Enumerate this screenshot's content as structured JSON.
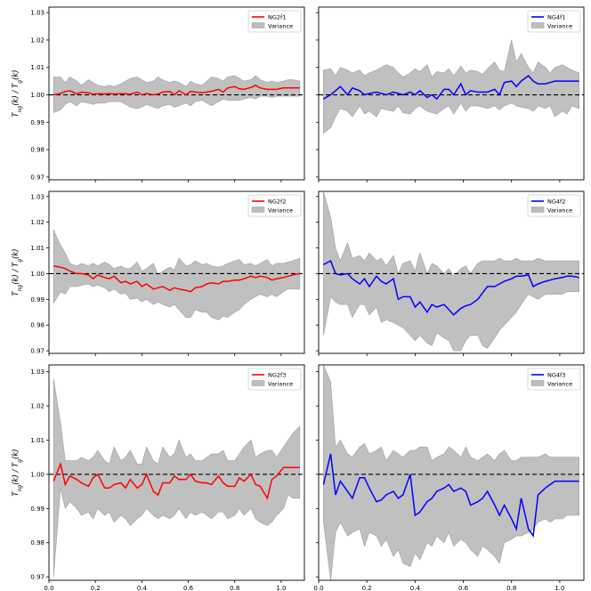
{
  "chart_data": {
    "type": "line",
    "layout": "3x2 grid of panels, shared axes",
    "ylabel": "T_ng(k) / T_g(k)",
    "ylabel_parts": {
      "T1": "T",
      "s1": "ng",
      "m": "(k) / ",
      "T2": "T",
      "s2": "g",
      "e": "(k)"
    },
    "xlabel": "k[h/Mpc]",
    "xlim": [
      0.0,
      1.1
    ],
    "ylim": [
      0.969,
      1.032
    ],
    "xticks": [
      0.0,
      0.2,
      0.4,
      0.6,
      0.8,
      1.0
    ],
    "xtick_labels": [
      "0.0",
      "0.2",
      "0.4",
      "0.6",
      "0.8",
      "1.0"
    ],
    "yticks": [
      0.97,
      0.98,
      0.99,
      1.0,
      1.01,
      1.02,
      1.03
    ],
    "ytick_labels": [
      "0.97",
      "0.98",
      "0.99",
      "1.00",
      "1.01",
      "1.02",
      "1.03"
    ],
    "reference_line": {
      "y": 1.0,
      "style": "dashed",
      "color": "#000000"
    },
    "band_color": "#bdbdbd",
    "band_name": "Variance",
    "legend_position": "top-right",
    "x": [
      0.02,
      0.05,
      0.07,
      0.09,
      0.12,
      0.14,
      0.17,
      0.19,
      0.21,
      0.24,
      0.26,
      0.28,
      0.31,
      0.33,
      0.35,
      0.38,
      0.4,
      0.42,
      0.45,
      0.47,
      0.49,
      0.52,
      0.54,
      0.56,
      0.59,
      0.61,
      0.63,
      0.66,
      0.68,
      0.7,
      0.73,
      0.75,
      0.77,
      0.8,
      0.82,
      0.84,
      0.87,
      0.89,
      0.91,
      0.94,
      0.96,
      0.98,
      1.01,
      1.03,
      1.05,
      1.08
    ],
    "panels": [
      {
        "name": "NG2f1",
        "color": "#ff0000",
        "values": [
          1.0,
          1.0005,
          1.0012,
          1.0015,
          1.0003,
          1.001,
          1.0007,
          1.0002,
          1.0004,
          1.0003,
          1.0005,
          1.0003,
          1.0004,
          1.0004,
          1.0002,
          1.001,
          1.0,
          1.0005,
          1.0,
          1.0003,
          1.001,
          1.0012,
          1.0,
          1.0015,
          1.0,
          1.0012,
          1.001,
          1.0008,
          1.001,
          1.0013,
          1.002,
          1.001,
          1.0025,
          1.003,
          1.0022,
          1.002,
          1.0027,
          1.0035,
          1.0025,
          1.002,
          1.002,
          1.002,
          1.0025,
          1.0025,
          1.0025,
          1.0025
        ],
        "upper": [
          1.0065,
          1.0065,
          1.0045,
          1.0065,
          1.005,
          1.0035,
          1.0055,
          1.0045,
          1.0035,
          1.003,
          1.0035,
          1.003,
          1.004,
          1.005,
          1.006,
          1.0065,
          1.0055,
          1.0045,
          1.005,
          1.0065,
          1.0055,
          1.0045,
          1.005,
          1.0045,
          1.003,
          1.005,
          1.004,
          1.0035,
          1.005,
          1.0065,
          1.006,
          1.005,
          1.0065,
          1.007,
          1.006,
          1.005,
          1.0055,
          1.007,
          1.0055,
          1.0045,
          1.005,
          1.0045,
          1.005,
          1.0055,
          1.0055,
          1.005
        ],
        "lower": [
          0.9935,
          0.9945,
          0.9965,
          0.9975,
          0.996,
          0.9975,
          0.997,
          0.9965,
          0.997,
          0.997,
          0.9975,
          0.9975,
          0.9975,
          0.9965,
          0.9955,
          0.995,
          0.9955,
          0.9965,
          0.9955,
          0.995,
          0.996,
          0.9965,
          0.9955,
          0.996,
          0.997,
          0.996,
          0.9975,
          0.998,
          0.997,
          0.996,
          0.9975,
          0.9985,
          0.998,
          0.998,
          0.998,
          0.9985,
          0.999,
          0.9985,
          0.9995,
          0.9995,
          0.999,
          0.9995,
          0.9995,
          0.9995,
          0.9995,
          0.9995
        ]
      },
      {
        "name": "NG4f1",
        "color": "#0000ff",
        "values": [
          0.9985,
          1.0,
          1.0015,
          1.003,
          1.0,
          1.0025,
          1.0015,
          1.0,
          1.0005,
          1.001,
          1.0005,
          1.0,
          1.001,
          1.0005,
          1.0,
          1.001,
          1.0,
          1.0015,
          0.999,
          1.0,
          0.9985,
          1.002,
          1.002,
          1.0,
          1.004,
          1.0,
          1.0015,
          1.001,
          1.001,
          1.001,
          1.002,
          1.0,
          1.0045,
          1.005,
          1.003,
          1.005,
          1.007,
          1.005,
          1.004,
          1.004,
          1.0045,
          1.005,
          1.005,
          1.005,
          1.005,
          1.005
        ],
        "upper": [
          1.009,
          1.0095,
          1.007,
          1.01,
          1.009,
          1.008,
          1.009,
          1.007,
          1.008,
          1.009,
          1.01,
          1.011,
          1.01,
          1.008,
          1.0065,
          1.008,
          1.0095,
          1.0085,
          1.011,
          1.0065,
          1.0085,
          1.008,
          1.0095,
          1.007,
          1.0105,
          1.008,
          1.009,
          1.0085,
          1.0075,
          1.0095,
          1.012,
          1.009,
          1.0085,
          1.02,
          1.012,
          1.015,
          1.01,
          1.008,
          1.012,
          1.01,
          1.008,
          1.01,
          1.011,
          1.01,
          1.009,
          1.008
        ],
        "lower": [
          0.986,
          0.988,
          0.992,
          0.995,
          0.994,
          0.992,
          0.996,
          0.993,
          0.994,
          0.992,
          0.995,
          0.9945,
          0.994,
          0.996,
          0.9935,
          0.993,
          0.995,
          0.996,
          0.994,
          0.9935,
          0.993,
          0.995,
          0.996,
          0.993,
          0.997,
          0.994,
          0.996,
          0.996,
          0.9955,
          0.995,
          0.996,
          0.9945,
          0.996,
          0.997,
          0.996,
          0.9955,
          0.995,
          0.994,
          0.996,
          0.995,
          0.996,
          0.992,
          0.994,
          0.993,
          0.996,
          0.995
        ]
      },
      {
        "name": "NG2f2",
        "color": "#ff0000",
        "values": [
          1.003,
          1.0025,
          1.002,
          1.001,
          1.0,
          1.0,
          0.9995,
          0.998,
          0.9995,
          0.9985,
          0.998,
          0.999,
          0.9965,
          0.997,
          0.996,
          0.997,
          0.995,
          0.996,
          0.994,
          0.9945,
          0.995,
          0.9935,
          0.9945,
          0.994,
          0.9935,
          0.993,
          0.9945,
          0.995,
          0.996,
          0.9965,
          0.996,
          0.997,
          0.997,
          0.9975,
          0.9975,
          0.998,
          0.999,
          0.9985,
          0.999,
          0.9985,
          0.9975,
          0.998,
          0.9985,
          0.999,
          0.9995,
          1.0
        ],
        "upper": [
          1.017,
          1.011,
          1.008,
          1.004,
          1.003,
          1.004,
          1.003,
          1.004,
          1.003,
          1.0045,
          1.0035,
          1.002,
          1.003,
          1.002,
          1.002,
          1.0045,
          1.001,
          1.002,
          1.004,
          0.9995,
          1.001,
          1.0025,
          1.0015,
          1.006,
          1.003,
          1.0035,
          1.005,
          1.0035,
          1.004,
          1.003,
          1.0025,
          1.003,
          1.004,
          1.005,
          1.0055,
          1.0035,
          1.004,
          1.003,
          1.004,
          1.0055,
          1.003,
          1.004,
          1.004,
          1.0045,
          1.005,
          1.006
        ],
        "lower": [
          0.9885,
          0.993,
          0.992,
          0.995,
          0.995,
          0.9955,
          0.996,
          0.995,
          0.9955,
          0.9945,
          0.993,
          0.994,
          0.992,
          0.9925,
          0.99,
          0.9905,
          0.989,
          0.99,
          0.988,
          0.989,
          0.988,
          0.987,
          0.988,
          0.986,
          0.983,
          0.983,
          0.986,
          0.985,
          0.985,
          0.983,
          0.982,
          0.9835,
          0.983,
          0.985,
          0.986,
          0.988,
          0.99,
          0.991,
          0.992,
          0.991,
          0.992,
          0.991,
          0.993,
          0.994,
          0.994,
          0.994
        ]
      },
      {
        "name": "NG4f2",
        "color": "#0000ff",
        "values": [
          1.0035,
          1.005,
          1.0,
          0.9995,
          1.0,
          0.998,
          0.996,
          0.998,
          0.995,
          0.999,
          0.997,
          0.996,
          0.998,
          0.99,
          0.991,
          0.991,
          0.987,
          0.989,
          0.985,
          0.988,
          0.987,
          0.988,
          0.986,
          0.984,
          0.9865,
          0.9875,
          0.988,
          0.99,
          0.9925,
          0.995,
          0.995,
          0.996,
          0.997,
          0.998,
          0.999,
          0.999,
          0.9995,
          0.995,
          0.996,
          0.997,
          0.9975,
          0.998,
          0.9985,
          0.999,
          0.999,
          0.9985
        ],
        "upper": [
          1.032,
          1.022,
          1.01,
          1.005,
          1.012,
          1.006,
          1.007,
          1.005,
          1.008,
          1.005,
          1.006,
          1.003,
          1.007,
          1.0,
          1.004,
          1.005,
          1.001,
          1.008,
          1.0,
          1.004,
          1.003,
          1.0,
          1.002,
          0.999,
          1.002,
          1.003,
          1.0,
          1.004,
          1.005,
          1.005,
          1.005,
          1.006,
          1.005,
          1.005,
          1.006,
          1.005,
          1.005,
          1.005,
          1.006,
          1.005,
          1.005,
          1.005,
          1.005,
          1.005,
          1.005,
          1.005
        ],
        "lower": [
          0.976,
          0.991,
          0.989,
          0.988,
          0.988,
          0.983,
          0.988,
          0.988,
          0.984,
          0.987,
          0.981,
          0.982,
          0.981,
          0.98,
          0.979,
          0.976,
          0.974,
          0.976,
          0.973,
          0.972,
          0.977,
          0.975,
          0.974,
          0.97,
          0.97,
          0.974,
          0.976,
          0.976,
          0.972,
          0.971,
          0.975,
          0.978,
          0.98,
          0.983,
          0.985,
          0.988,
          0.992,
          0.991,
          0.99,
          0.992,
          0.992,
          0.992,
          0.992,
          0.993,
          0.993,
          0.993
        ]
      },
      {
        "name": "NG2f3",
        "color": "#ff0000",
        "values": [
          0.998,
          1.003,
          0.997,
          0.9995,
          0.9985,
          0.9975,
          0.9965,
          0.999,
          1.0,
          0.996,
          0.996,
          0.997,
          0.9975,
          0.996,
          0.9985,
          0.996,
          0.997,
          1.0,
          0.995,
          0.994,
          0.9975,
          0.9975,
          0.9995,
          0.9985,
          0.9985,
          1.0,
          0.998,
          0.9975,
          0.9975,
          0.997,
          0.9995,
          0.9975,
          0.9965,
          0.9965,
          0.999,
          0.998,
          1.0,
          0.997,
          0.9965,
          0.993,
          0.9985,
          0.9995,
          1.002,
          1.002,
          1.002,
          1.002
        ],
        "upper": [
          1.028,
          1.015,
          1.004,
          1.004,
          1.004,
          1.005,
          1.004,
          1.005,
          1.007,
          1.004,
          1.003,
          1.008,
          1.004,
          1.005,
          1.007,
          1.003,
          1.003,
          1.008,
          1.004,
          1.003,
          1.008,
          1.005,
          1.006,
          1.01,
          1.005,
          1.006,
          1.004,
          1.004,
          1.005,
          1.006,
          1.006,
          1.007,
          1.004,
          1.004,
          1.006,
          1.008,
          1.01,
          1.005,
          1.006,
          1.007,
          1.007,
          1.005,
          1.008,
          1.01,
          1.012,
          1.014
        ],
        "lower": [
          0.97,
          0.996,
          0.99,
          0.992,
          0.99,
          0.988,
          0.989,
          0.987,
          0.99,
          0.988,
          0.989,
          0.986,
          0.988,
          0.987,
          0.985,
          0.987,
          0.988,
          0.99,
          0.988,
          0.987,
          0.988,
          0.987,
          0.988,
          0.99,
          0.987,
          0.989,
          0.988,
          0.989,
          0.988,
          0.987,
          0.989,
          0.989,
          0.987,
          0.988,
          0.99,
          0.988,
          0.99,
          0.987,
          0.986,
          0.985,
          0.986,
          0.988,
          0.99,
          0.994,
          0.993,
          0.993
        ]
      },
      {
        "name": "NG4f3",
        "color": "#0000ff",
        "values": [
          0.997,
          1.006,
          0.994,
          0.998,
          0.995,
          0.993,
          0.999,
          0.999,
          0.996,
          0.992,
          0.9925,
          0.994,
          0.995,
          0.993,
          0.994,
          1.0,
          0.988,
          0.989,
          0.992,
          0.993,
          0.995,
          0.996,
          0.997,
          0.995,
          0.996,
          0.995,
          0.991,
          0.992,
          0.993,
          0.995,
          0.991,
          0.988,
          0.991,
          0.987,
          0.984,
          0.993,
          0.984,
          0.982,
          0.994,
          0.996,
          0.997,
          0.998,
          0.998,
          0.998,
          0.998,
          0.998
        ],
        "upper": [
          1.032,
          1.027,
          1.008,
          1.01,
          1.006,
          1.005,
          1.008,
          1.009,
          1.006,
          1.007,
          1.008,
          1.004,
          1.007,
          1.006,
          1.005,
          1.007,
          1.007,
          1.008,
          1.008,
          1.004,
          1.005,
          1.006,
          1.008,
          1.007,
          1.005,
          1.008,
          1.005,
          1.004,
          1.005,
          1.006,
          1.004,
          1.006,
          1.007,
          1.004,
          1.004,
          1.005,
          1.005,
          1.005,
          1.005,
          1.006,
          1.005,
          1.005,
          1.005,
          1.005,
          1.005,
          1.005
        ],
        "lower": [
          0.986,
          0.969,
          0.983,
          0.986,
          0.982,
          0.983,
          0.984,
          0.979,
          0.983,
          0.982,
          0.979,
          0.981,
          0.976,
          0.978,
          0.974,
          0.973,
          0.977,
          0.975,
          0.98,
          0.979,
          0.982,
          0.98,
          0.983,
          0.979,
          0.981,
          0.98,
          0.978,
          0.976,
          0.979,
          0.978,
          0.976,
          0.974,
          0.98,
          0.981,
          0.982,
          0.982,
          0.983,
          0.984,
          0.986,
          0.987,
          0.986,
          0.987,
          0.987,
          0.988,
          0.988,
          0.988
        ]
      }
    ]
  }
}
